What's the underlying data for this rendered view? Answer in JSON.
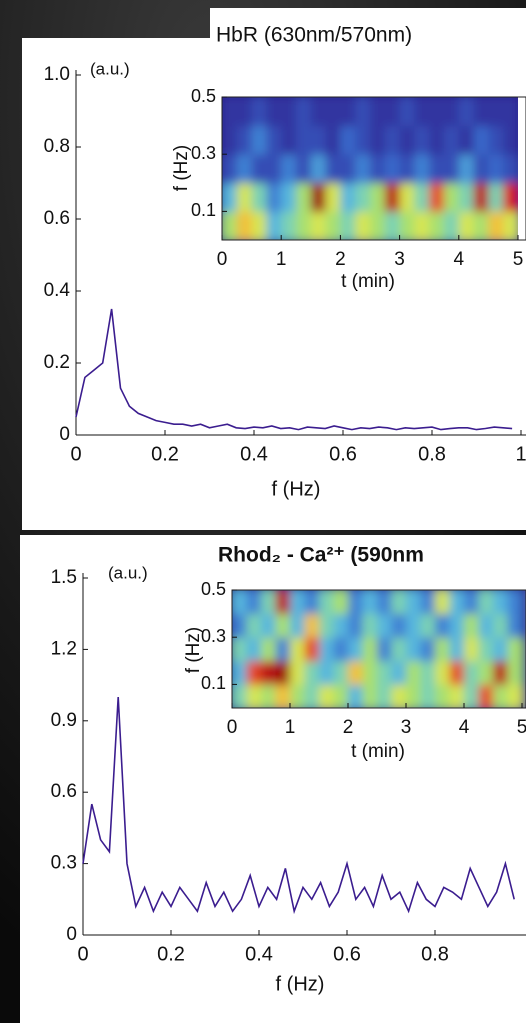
{
  "chart_data": [
    {
      "type": "line",
      "title": "HbR (630nm/570nm)",
      "annotation": "(a.u.)",
      "xlabel": "f (Hz)",
      "x": [
        0,
        0.02,
        0.04,
        0.06,
        0.08,
        0.1,
        0.12,
        0.14,
        0.16,
        0.18,
        0.2,
        0.22,
        0.24,
        0.26,
        0.28,
        0.3,
        0.32,
        0.34,
        0.36,
        0.38,
        0.4,
        0.42,
        0.44,
        0.46,
        0.48,
        0.5,
        0.52,
        0.54,
        0.56,
        0.58,
        0.6,
        0.62,
        0.64,
        0.66,
        0.68,
        0.7,
        0.72,
        0.74,
        0.76,
        0.78,
        0.8,
        0.82,
        0.84,
        0.86,
        0.88,
        0.9,
        0.92,
        0.94,
        0.96,
        0.98
      ],
      "values": [
        0.05,
        0.16,
        0.18,
        0.2,
        0.35,
        0.13,
        0.08,
        0.06,
        0.05,
        0.04,
        0.035,
        0.03,
        0.03,
        0.025,
        0.03,
        0.02,
        0.025,
        0.03,
        0.02,
        0.018,
        0.022,
        0.02,
        0.025,
        0.018,
        0.02,
        0.015,
        0.022,
        0.02,
        0.018,
        0.025,
        0.02,
        0.015,
        0.02,
        0.018,
        0.022,
        0.02,
        0.015,
        0.02,
        0.018,
        0.02,
        0.022,
        0.015,
        0.018,
        0.02,
        0.02,
        0.015,
        0.018,
        0.022,
        0.02,
        0.018
      ],
      "color": "#3b1d8f",
      "xlim": [
        0,
        1
      ],
      "ylim": [
        0,
        1
      ],
      "xticks": [
        0,
        0.2,
        0.4,
        0.6,
        0.8,
        1
      ],
      "yticks": [
        0,
        0.2,
        0.4,
        0.6,
        0.8,
        {
          "value": 1,
          "label": "1.0"
        }
      ]
    },
    {
      "type": "heatmap",
      "xlabel": "t (min)",
      "ylabel": "f (Hz)",
      "xlim": [
        0,
        5
      ],
      "ylim": [
        0,
        0.5
      ],
      "xticks": [
        0,
        1,
        2,
        3,
        4,
        5
      ],
      "yticks": [
        0.1,
        0.3,
        0.5
      ],
      "colormap": [
        "#2b1b8c",
        "#3a6fd0",
        "#5ec8e0",
        "#a8e070",
        "#f5e840",
        "#e02020",
        "#800000"
      ],
      "z": [
        [
          0.5,
          0.7,
          0.6,
          0.3,
          0.4,
          0.5,
          0.6,
          0.5,
          0.4,
          0.6,
          0.5,
          0.4,
          0.5,
          0.6,
          0.5,
          0.4,
          0.6,
          0.5,
          0.7,
          0.6
        ],
        [
          0.3,
          0.6,
          0.4,
          0.2,
          0.3,
          0.5,
          0.95,
          0.6,
          0.3,
          0.4,
          0.5,
          0.9,
          0.6,
          0.4,
          0.8,
          0.5,
          0.4,
          0.9,
          0.4,
          0.85
        ],
        [
          0.1,
          0.2,
          0.1,
          0.1,
          0.2,
          0.1,
          0.25,
          0.1,
          0.1,
          0.2,
          0.1,
          0.15,
          0.1,
          0.2,
          0.1,
          0.1,
          0.25,
          0.1,
          0.15,
          0.1
        ],
        [
          0.05,
          0.1,
          0.2,
          0.1,
          0.05,
          0.1,
          0.1,
          0.05,
          0.15,
          0.1,
          0.05,
          0.1,
          0.05,
          0.1,
          0.05,
          0.1,
          0.05,
          0.15,
          0.1,
          0.05
        ],
        [
          0.05,
          0.05,
          0.1,
          0.05,
          0.05,
          0.1,
          0.05,
          0.05,
          0.05,
          0.1,
          0.05,
          0.05,
          0.1,
          0.05,
          0.05,
          0.05,
          0.1,
          0.05,
          0.05,
          0.05
        ]
      ]
    },
    {
      "type": "line",
      "title": "Rhod₂ - Ca²⁺ (590nm",
      "title_color": "#e8356a",
      "annotation": "(a.u.)",
      "xlabel": "f (Hz)",
      "x": [
        0,
        0.02,
        0.04,
        0.06,
        0.08,
        0.1,
        0.12,
        0.14,
        0.16,
        0.18,
        0.2,
        0.22,
        0.24,
        0.26,
        0.28,
        0.3,
        0.32,
        0.34,
        0.36,
        0.38,
        0.4,
        0.42,
        0.44,
        0.46,
        0.48,
        0.5,
        0.52,
        0.54,
        0.56,
        0.58,
        0.6,
        0.62,
        0.64,
        0.66,
        0.68,
        0.7,
        0.72,
        0.74,
        0.76,
        0.78,
        0.8,
        0.82,
        0.84,
        0.86,
        0.88,
        0.9,
        0.92,
        0.94,
        0.96,
        0.98
      ],
      "values": [
        0.3,
        0.55,
        0.4,
        0.35,
        1.0,
        0.3,
        0.12,
        0.2,
        0.1,
        0.18,
        0.12,
        0.2,
        0.15,
        0.1,
        0.22,
        0.12,
        0.18,
        0.1,
        0.15,
        0.25,
        0.12,
        0.2,
        0.15,
        0.28,
        0.1,
        0.2,
        0.15,
        0.22,
        0.12,
        0.18,
        0.3,
        0.15,
        0.2,
        0.12,
        0.25,
        0.15,
        0.18,
        0.1,
        0.22,
        0.15,
        0.12,
        0.2,
        0.18,
        0.15,
        0.28,
        0.2,
        0.12,
        0.18,
        0.3,
        0.15
      ],
      "color": "#3b1d8f",
      "xlim": [
        0,
        1
      ],
      "ylim": [
        0,
        1.5
      ],
      "xticks": [
        0,
        0.2,
        0.4,
        0.6,
        0.8
      ],
      "yticks": [
        0,
        0.3,
        0.6,
        0.9,
        1.2,
        1.5
      ]
    },
    {
      "type": "heatmap",
      "xlabel": "t (min)",
      "ylabel": "f (Hz)",
      "xlim": [
        0,
        5
      ],
      "ylim": [
        0,
        0.5
      ],
      "xticks": [
        0,
        1,
        2,
        3,
        4,
        5
      ],
      "yticks": [
        0.1,
        0.3,
        0.5
      ],
      "colormap": [
        "#2b1b8c",
        "#3a6fd0",
        "#5ec8e0",
        "#a8e070",
        "#f5e840",
        "#e02020",
        "#800000"
      ],
      "z": [
        [
          0.4,
          0.6,
          0.5,
          0.7,
          0.5,
          0.4,
          0.6,
          0.5,
          0.3,
          0.5,
          0.4,
          0.6,
          0.5,
          0.4,
          0.5,
          0.6,
          0.4,
          0.8,
          0.5,
          0.6
        ],
        [
          0.3,
          0.8,
          0.9,
          0.95,
          0.6,
          0.4,
          0.3,
          0.4,
          0.7,
          0.5,
          0.4,
          0.3,
          0.5,
          0.4,
          0.6,
          0.8,
          0.4,
          0.5,
          0.9,
          0.5
        ],
        [
          0.4,
          0.3,
          0.5,
          0.2,
          0.6,
          0.8,
          0.3,
          0.2,
          0.3,
          0.5,
          0.2,
          0.4,
          0.3,
          0.2,
          0.5,
          0.3,
          0.6,
          0.4,
          0.3,
          0.5
        ],
        [
          0.2,
          0.4,
          0.3,
          0.5,
          0.3,
          0.7,
          0.4,
          0.3,
          0.2,
          0.4,
          0.3,
          0.2,
          0.3,
          0.4,
          0.2,
          0.3,
          0.5,
          0.3,
          0.4,
          0.2
        ],
        [
          0.3,
          0.2,
          0.4,
          0.9,
          0.3,
          0.2,
          0.4,
          0.5,
          0.2,
          0.3,
          0.2,
          0.4,
          0.3,
          0.2,
          0.6,
          0.3,
          0.2,
          0.4,
          0.3,
          0.2
        ]
      ]
    }
  ]
}
